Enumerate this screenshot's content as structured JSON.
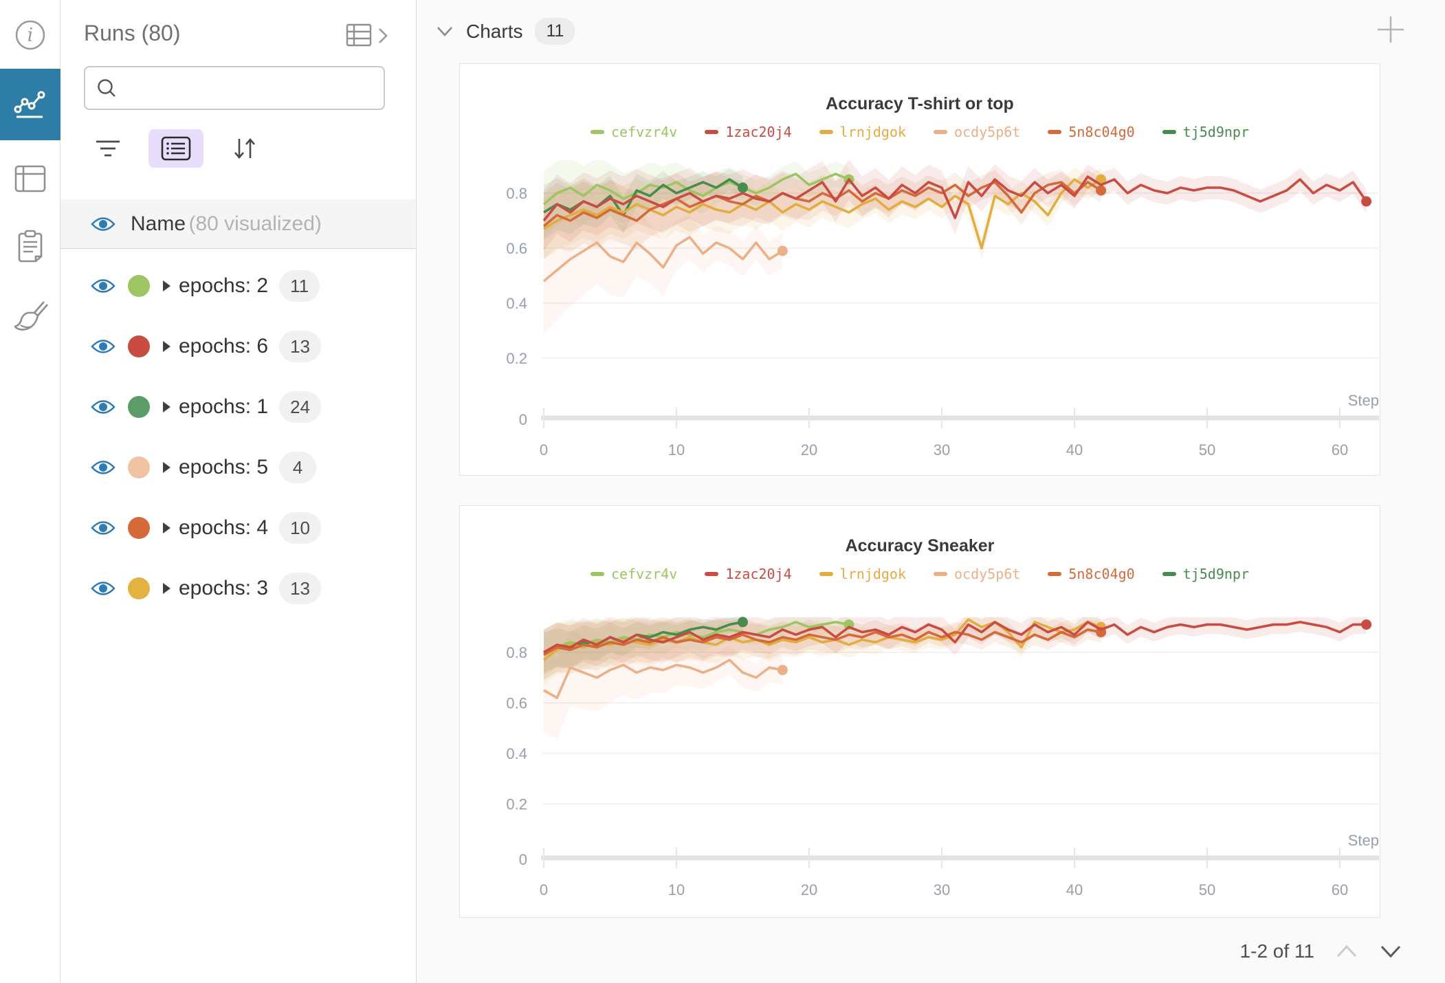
{
  "rail": {
    "items": [
      {
        "id": "info",
        "label": "info"
      },
      {
        "id": "charts",
        "label": "charts",
        "active": true
      },
      {
        "id": "table",
        "label": "table"
      },
      {
        "id": "notes",
        "label": "notes"
      },
      {
        "id": "cleanup",
        "label": "cleanup"
      }
    ]
  },
  "sidebar": {
    "title": "Runs (80)",
    "search_placeholder": "",
    "search_value": "",
    "visualized_row": {
      "label": "Name",
      "sub": "(80 visualized)"
    },
    "runs": [
      {
        "label": "epochs: 2",
        "count": "11",
        "color": "#9dc561"
      },
      {
        "label": "epochs: 6",
        "count": "13",
        "color": "#c94c43"
      },
      {
        "label": "epochs: 1",
        "count": "24",
        "color": "#5b9c68"
      },
      {
        "label": "epochs: 5",
        "count": "4",
        "color": "#efc3a4"
      },
      {
        "label": "epochs: 4",
        "count": "10",
        "color": "#d4693a"
      },
      {
        "label": "epochs: 3",
        "count": "13",
        "color": "#e2b340"
      }
    ]
  },
  "panel": {
    "title": "Charts",
    "badge": "11",
    "pagination": "1-2 of 11"
  },
  "chart_data": [
    {
      "type": "line",
      "title": "Accuracy T-shirt or top",
      "xlabel": "Step",
      "x_ticks": [
        0,
        10,
        20,
        30,
        40,
        50,
        60
      ],
      "y_ticks": [
        0.8,
        0.6,
        0.4,
        0.2,
        0
      ],
      "x_range": [
        0,
        62
      ],
      "ylim": [
        0,
        0.91
      ],
      "grid": true,
      "legend_position": "top",
      "series": [
        {
          "name": "cefvzr4v",
          "color": "#9dc561",
          "band_spread": 0.1,
          "x_start": 0,
          "x_step": 1,
          "values": [
            0.76,
            0.8,
            0.82,
            0.79,
            0.83,
            0.81,
            0.78,
            0.8,
            0.83,
            0.82,
            0.84,
            0.81,
            0.79,
            0.82,
            0.84,
            0.82,
            0.8,
            0.82,
            0.85,
            0.87,
            0.83,
            0.85,
            0.87,
            0.85
          ]
        },
        {
          "name": "1zac20j4",
          "color": "#c94c43",
          "band_spread": 0.09,
          "x_start": 0,
          "x_step": 1,
          "values": [
            0.7,
            0.76,
            0.73,
            0.77,
            0.75,
            0.78,
            0.76,
            0.79,
            0.77,
            0.75,
            0.78,
            0.8,
            0.77,
            0.79,
            0.78,
            0.8,
            0.78,
            0.77,
            0.8,
            0.78,
            0.81,
            0.84,
            0.77,
            0.85,
            0.79,
            0.82,
            0.78,
            0.83,
            0.8,
            0.84,
            0.82,
            0.71,
            0.84,
            0.79,
            0.85,
            0.81,
            0.79,
            0.84,
            0.8,
            0.83,
            0.79,
            0.86,
            0.83,
            0.85,
            0.8,
            0.83,
            0.81,
            0.8,
            0.82,
            0.81,
            0.82,
            0.82,
            0.81,
            0.79,
            0.77,
            0.79,
            0.81,
            0.85,
            0.8,
            0.83,
            0.81,
            0.84,
            0.77
          ]
        },
        {
          "name": "lrnjdgok",
          "color": "#e2ac3f",
          "band_spread": 0.09,
          "x_start": 0,
          "x_step": 1,
          "values": [
            0.67,
            0.7,
            0.72,
            0.74,
            0.72,
            0.75,
            0.73,
            0.76,
            0.74,
            0.72,
            0.75,
            0.73,
            0.76,
            0.74,
            0.73,
            0.76,
            0.74,
            0.77,
            0.73,
            0.76,
            0.74,
            0.77,
            0.75,
            0.73,
            0.76,
            0.78,
            0.74,
            0.77,
            0.75,
            0.78,
            0.75,
            0.79,
            0.76,
            0.6,
            0.79,
            0.76,
            0.8,
            0.77,
            0.72,
            0.8,
            0.85,
            0.82,
            0.85
          ]
        },
        {
          "name": "ocdy5p6t",
          "color": "#ecb089",
          "band_spread": 0.17,
          "x_start": 0,
          "x_step": 1,
          "values": [
            0.48,
            0.52,
            0.56,
            0.59,
            0.62,
            0.57,
            0.55,
            0.62,
            0.58,
            0.53,
            0.61,
            0.64,
            0.58,
            0.62,
            0.6,
            0.56,
            0.62,
            0.56,
            0.59
          ]
        },
        {
          "name": "5n8c04g0",
          "color": "#d4693a",
          "band_spread": 0.1,
          "x_start": 0,
          "x_step": 1,
          "values": [
            0.68,
            0.72,
            0.7,
            0.73,
            0.71,
            0.74,
            0.72,
            0.7,
            0.74,
            0.76,
            0.78,
            0.75,
            0.77,
            0.79,
            0.77,
            0.76,
            0.79,
            0.77,
            0.8,
            0.78,
            0.77,
            0.8,
            0.78,
            0.81,
            0.77,
            0.8,
            0.78,
            0.81,
            0.79,
            0.82,
            0.8,
            0.83,
            0.79,
            0.82,
            0.84,
            0.79,
            0.73,
            0.8,
            0.83,
            0.84,
            0.8,
            0.84,
            0.81
          ]
        },
        {
          "name": "tj5d9npr",
          "color": "#478b4e",
          "band_spread": 0.08,
          "x_start": 0,
          "x_step": 1,
          "values": [
            0.73,
            0.76,
            0.74,
            0.77,
            0.75,
            0.79,
            0.72,
            0.81,
            0.79,
            0.83,
            0.8,
            0.82,
            0.84,
            0.82,
            0.85,
            0.82
          ]
        }
      ]
    },
    {
      "type": "line",
      "title": "Accuracy Sneaker",
      "xlabel": "Step",
      "x_ticks": [
        0,
        10,
        20,
        30,
        40,
        50,
        60
      ],
      "y_ticks": [
        0.8,
        0.6,
        0.4,
        0.2,
        0
      ],
      "x_range": [
        0,
        62
      ],
      "ylim": [
        0,
        0.93
      ],
      "grid": true,
      "legend_position": "top",
      "series": [
        {
          "name": "cefvzr4v",
          "color": "#9dc561",
          "band_spread": 0.08,
          "x_start": 0,
          "x_step": 1,
          "values": [
            0.79,
            0.82,
            0.84,
            0.83,
            0.85,
            0.84,
            0.86,
            0.85,
            0.87,
            0.86,
            0.88,
            0.87,
            0.86,
            0.88,
            0.89,
            0.88,
            0.87,
            0.89,
            0.9,
            0.92,
            0.9,
            0.91,
            0.92,
            0.91
          ]
        },
        {
          "name": "1zac20j4",
          "color": "#c94c43",
          "band_spread": 0.07,
          "x_start": 0,
          "x_step": 1,
          "values": [
            0.8,
            0.83,
            0.82,
            0.85,
            0.83,
            0.86,
            0.84,
            0.87,
            0.85,
            0.84,
            0.86,
            0.88,
            0.85,
            0.87,
            0.86,
            0.88,
            0.87,
            0.86,
            0.89,
            0.87,
            0.89,
            0.9,
            0.86,
            0.9,
            0.88,
            0.89,
            0.87,
            0.9,
            0.88,
            0.91,
            0.89,
            0.84,
            0.91,
            0.88,
            0.92,
            0.89,
            0.87,
            0.91,
            0.88,
            0.9,
            0.87,
            0.92,
            0.89,
            0.91,
            0.87,
            0.9,
            0.88,
            0.9,
            0.91,
            0.9,
            0.91,
            0.91,
            0.9,
            0.89,
            0.9,
            0.91,
            0.91,
            0.92,
            0.91,
            0.9,
            0.88,
            0.91,
            0.91
          ]
        },
        {
          "name": "lrnjdgok",
          "color": "#e2ac3f",
          "band_spread": 0.08,
          "x_start": 0,
          "x_step": 1,
          "values": [
            0.77,
            0.81,
            0.83,
            0.82,
            0.84,
            0.83,
            0.85,
            0.84,
            0.83,
            0.85,
            0.84,
            0.86,
            0.84,
            0.83,
            0.86,
            0.84,
            0.85,
            0.83,
            0.85,
            0.84,
            0.86,
            0.84,
            0.85,
            0.83,
            0.85,
            0.84,
            0.86,
            0.85,
            0.84,
            0.86,
            0.85,
            0.87,
            0.93,
            0.9,
            0.92,
            0.88,
            0.82,
            0.92,
            0.9,
            0.88,
            0.89,
            0.92,
            0.9
          ]
        },
        {
          "name": "ocdy5p6t",
          "color": "#ecb089",
          "band_spread": 0.15,
          "x_start": 0,
          "x_step": 1,
          "values": [
            0.65,
            0.62,
            0.74,
            0.72,
            0.7,
            0.73,
            0.75,
            0.72,
            0.74,
            0.73,
            0.75,
            0.74,
            0.72,
            0.74,
            0.77,
            0.72,
            0.7,
            0.74,
            0.73
          ]
        },
        {
          "name": "5n8c04g0",
          "color": "#d4693a",
          "band_spread": 0.08,
          "x_start": 0,
          "x_step": 1,
          "values": [
            0.79,
            0.82,
            0.81,
            0.83,
            0.82,
            0.84,
            0.83,
            0.85,
            0.84,
            0.86,
            0.84,
            0.85,
            0.84,
            0.86,
            0.85,
            0.87,
            0.85,
            0.84,
            0.86,
            0.85,
            0.87,
            0.86,
            0.85,
            0.87,
            0.86,
            0.88,
            0.86,
            0.87,
            0.85,
            0.88,
            0.86,
            0.88,
            0.87,
            0.85,
            0.88,
            0.86,
            0.84,
            0.87,
            0.85,
            0.88,
            0.86,
            0.89,
            0.88
          ]
        },
        {
          "name": "tj5d9npr",
          "color": "#478b4e",
          "band_spread": 0.06,
          "x_start": 0,
          "x_step": 1,
          "values": [
            0.8,
            0.82,
            0.81,
            0.84,
            0.83,
            0.86,
            0.84,
            0.87,
            0.86,
            0.88,
            0.87,
            0.89,
            0.9,
            0.89,
            0.91,
            0.92
          ]
        }
      ]
    }
  ]
}
